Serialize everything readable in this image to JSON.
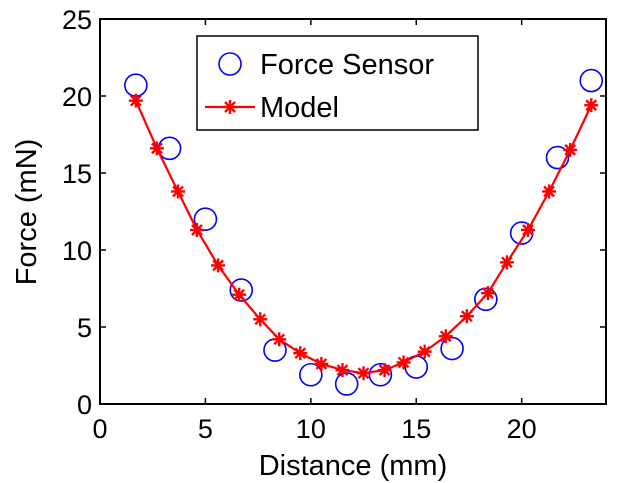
{
  "chart_data": {
    "type": "line",
    "title": "",
    "xlabel": "Distance (mm)",
    "ylabel": "Force (mN)",
    "xlim": [
      0,
      24
    ],
    "ylim": [
      0,
      25
    ],
    "xticks": [
      0,
      5,
      10,
      15,
      20
    ],
    "yticks": [
      0,
      5,
      10,
      15,
      20,
      25
    ],
    "grid": false,
    "legend_position": "top-center",
    "series": [
      {
        "name": "Force Sensor",
        "marker": "circle",
        "line": "none",
        "color": "#0000ff",
        "x": [
          1.7,
          3.3,
          5.0,
          6.7,
          8.3,
          10.0,
          11.7,
          13.3,
          15.0,
          16.7,
          18.3,
          20.0,
          21.7,
          23.3
        ],
        "y": [
          20.7,
          16.6,
          12.0,
          7.4,
          3.5,
          1.9,
          1.3,
          1.9,
          2.4,
          3.6,
          6.8,
          11.1,
          16.0,
          21.0
        ]
      },
      {
        "name": "Model",
        "marker": "asterisk",
        "line": "solid",
        "color": "#ff0000",
        "x": [
          1.7,
          2.7,
          3.7,
          4.6,
          5.6,
          6.6,
          7.6,
          8.5,
          9.5,
          10.5,
          11.5,
          12.5,
          13.5,
          14.4,
          15.4,
          16.4,
          17.4,
          18.4,
          19.3,
          20.3,
          21.3,
          22.3,
          23.3
        ],
        "y": [
          19.7,
          16.6,
          13.8,
          11.3,
          9.0,
          7.1,
          5.5,
          4.2,
          3.3,
          2.6,
          2.2,
          2.0,
          2.2,
          2.7,
          3.4,
          4.4,
          5.7,
          7.2,
          9.2,
          11.3,
          13.8,
          16.5,
          19.4
        ]
      }
    ]
  }
}
